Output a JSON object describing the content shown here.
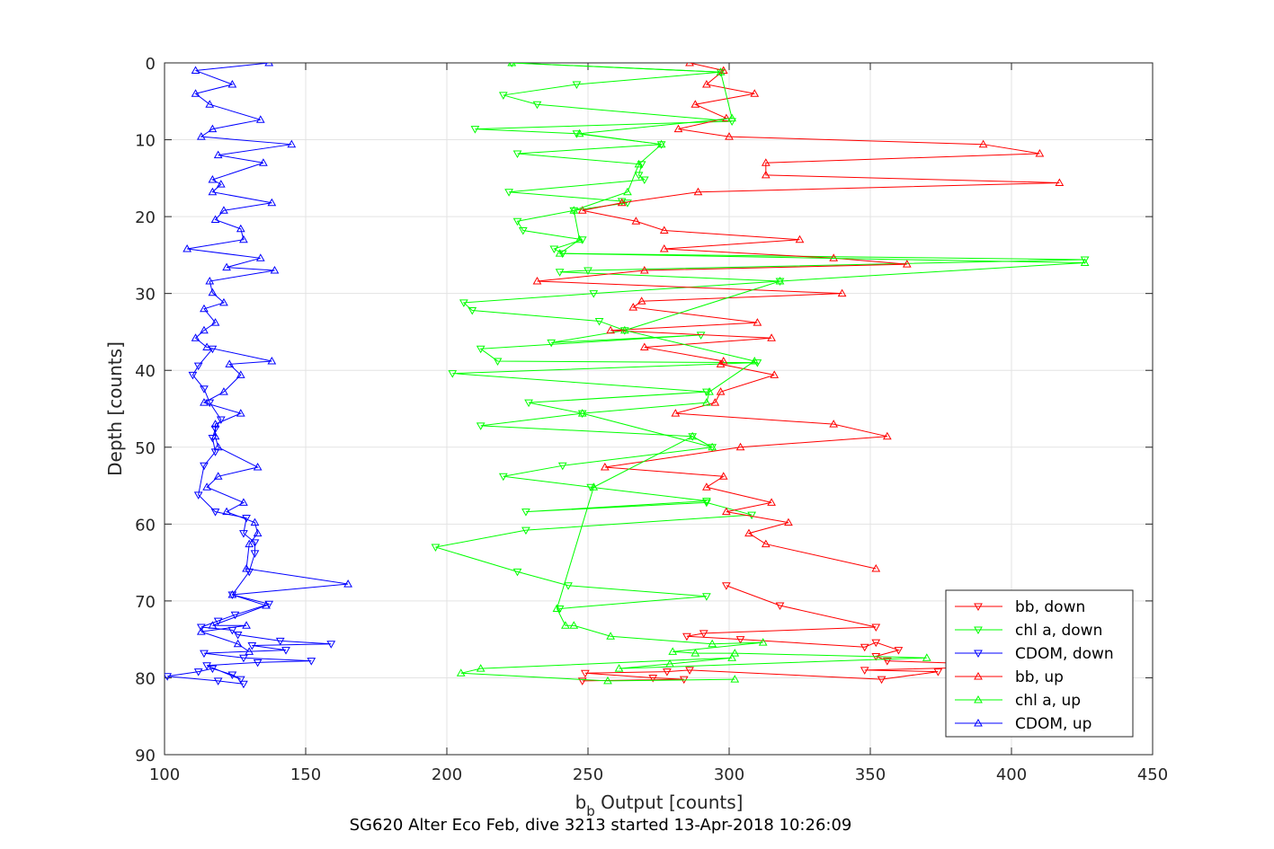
{
  "chart_data": {
    "type": "line",
    "title": "SG620 Alter Eco Feb, dive 3213 started 13-Apr-2018 10:26:09",
    "xlabel_main": "b",
    "xlabel_sub": "b",
    "xlabel_rest": " Output [counts]",
    "ylabel": "Depth [counts]",
    "xlim": [
      100,
      450
    ],
    "ylim": [
      0,
      90
    ],
    "y_reversed": true,
    "grid": true,
    "legend_position": "bottom-right",
    "xticks": [
      "100",
      "150",
      "200",
      "250",
      "300",
      "350",
      "400",
      "450"
    ],
    "yticks": [
      "0",
      "10",
      "20",
      "30",
      "40",
      "50",
      "60",
      "70",
      "80",
      "90"
    ],
    "series": [
      {
        "name": "bb, down",
        "color": "#ff0000",
        "marker": "down",
        "x": [
          299,
          318,
          352,
          291,
          285,
          304,
          348,
          352,
          360,
          352,
          356,
          389,
          392,
          348,
          374,
          354,
          286,
          278,
          249,
          273,
          284,
          248
        ],
        "y": [
          68,
          70.6,
          73.4,
          74.2,
          74.6,
          75,
          76,
          75.4,
          76.4,
          77.2,
          77.8,
          78.2,
          78.6,
          79,
          79.2,
          80.2,
          79,
          79.2,
          79.4,
          80,
          80.2,
          80.4
        ]
      },
      {
        "name": "chl a, down",
        "color": "#00ff00",
        "marker": "down",
        "x": [
          240,
          292,
          243,
          225,
          196,
          228,
          308,
          292,
          228,
          292,
          251,
          220,
          241,
          294,
          287,
          212,
          248,
          229,
          292,
          202,
          310,
          218,
          212,
          290,
          237,
          263,
          254,
          209,
          206,
          252,
          318,
          240,
          250,
          426,
          241,
          238,
          248,
          227,
          225,
          245,
          264,
          262,
          222,
          270,
          268,
          269,
          225,
          276,
          246,
          210,
          301,
          232,
          220,
          246,
          297,
          223
        ],
        "y": [
          71,
          69.4,
          68,
          66.2,
          63,
          60.8,
          58.8,
          57.2,
          58.4,
          57,
          55.2,
          53.8,
          52.4,
          50,
          48.6,
          47.2,
          45.6,
          44.2,
          42.8,
          40.4,
          39,
          38.8,
          37.2,
          35.4,
          36.4,
          34.8,
          33.6,
          32.2,
          31.2,
          30,
          28.4,
          27.2,
          27,
          25.6,
          24.8,
          24.2,
          23,
          21.8,
          20.6,
          19.2,
          18.2,
          18,
          16.8,
          15.2,
          14.6,
          13.2,
          11.8,
          10.6,
          9.2,
          8.6,
          7.6,
          5.4,
          4.2,
          2.8,
          1.2,
          0
        ]
      },
      {
        "name": "CDOM, down",
        "color": "#0000ff",
        "marker": "down",
        "x": [
          128,
          119,
          101,
          112,
          117,
          124,
          127,
          115,
          133,
          152,
          128,
          114,
          143,
          131,
          159,
          141,
          126,
          124,
          113,
          119,
          125,
          137,
          124,
          130,
          132,
          132,
          128,
          129,
          118,
          112,
          114,
          118,
          117,
          118,
          120,
          116,
          114,
          110,
          112,
          117
        ],
        "y": [
          80.8,
          80.4,
          79.8,
          79.2,
          78.8,
          79.6,
          80.2,
          78.4,
          78,
          77.8,
          77.4,
          76.8,
          76.4,
          75.8,
          75.6,
          75.2,
          74.4,
          73.8,
          73.4,
          72.6,
          71.8,
          70.4,
          69.2,
          66.2,
          63.8,
          62.4,
          61.2,
          59.2,
          58.4,
          56.2,
          52.4,
          50.6,
          48.8,
          47.6,
          46.4,
          44.2,
          42.4,
          40.6,
          39.4,
          37.2
        ]
      },
      {
        "name": "bb, up",
        "color": "#ff0000",
        "marker": "up",
        "x": [
          286,
          298,
          292,
          309,
          288,
          299,
          282,
          300,
          390,
          410,
          313,
          313,
          417,
          289,
          262,
          248,
          267,
          277,
          325,
          277,
          337,
          363,
          270,
          232,
          340,
          269,
          266,
          310,
          258,
          315,
          270,
          298,
          297,
          316,
          297,
          295,
          281,
          337,
          356,
          304,
          256,
          298,
          292,
          315,
          299,
          321,
          307,
          313,
          352
        ],
        "y": [
          0,
          1,
          2.8,
          4,
          5.4,
          7.2,
          8.6,
          9.6,
          10.6,
          11.8,
          13,
          14.6,
          15.6,
          16.8,
          18.2,
          19.2,
          20.6,
          21.8,
          23,
          24.2,
          25.4,
          26.2,
          27,
          28.4,
          30,
          31,
          31.8,
          33.8,
          34.8,
          35.8,
          37,
          38.8,
          39.2,
          40.6,
          42.8,
          44.2,
          45.6,
          47,
          48.6,
          50,
          52.6,
          53.8,
          55.2,
          57.2,
          58.4,
          59.8,
          61.2,
          62.6,
          65.8
        ]
      },
      {
        "name": "chl a, up",
        "color": "#00ff00",
        "marker": "up",
        "x": [
          223,
          297,
          301,
          247,
          276,
          268,
          264,
          245,
          247,
          240,
          426,
          318,
          263,
          309,
          293,
          292,
          248,
          294,
          287,
          252,
          239,
          242,
          245,
          258,
          294,
          312,
          280,
          288,
          302,
          370,
          261,
          279,
          301,
          212,
          205,
          257,
          302
        ],
        "y": [
          0,
          1.2,
          7.2,
          9.2,
          10.6,
          13.2,
          16.8,
          19.2,
          23,
          24.8,
          26,
          28.4,
          34.8,
          38.8,
          42.8,
          44.2,
          45.6,
          50,
          48.6,
          55.2,
          71,
          73.2,
          73.2,
          74.6,
          75.6,
          75.4,
          76.6,
          76.8,
          76.8,
          77.4,
          78.8,
          78.2,
          77.4,
          78.8,
          79.4,
          80.4,
          80.2
        ]
      },
      {
        "name": "CDOM, up",
        "color": "#0000ff",
        "marker": "up",
        "x": [
          137,
          111,
          124,
          111,
          116,
          134,
          117,
          113,
          145,
          119,
          135,
          117,
          120,
          117,
          138,
          121,
          118,
          127,
          128,
          108,
          134,
          122,
          139,
          116,
          117,
          121,
          114,
          118,
          114,
          111,
          115,
          138,
          123,
          127,
          121,
          114,
          127,
          118,
          118,
          119,
          133,
          119,
          115,
          128,
          122,
          132,
          133,
          130,
          129,
          165,
          124,
          136,
          117,
          129,
          113,
          126,
          130
        ],
        "y": [
          0,
          1,
          2.8,
          4,
          5.4,
          7.4,
          8.6,
          9.6,
          10.6,
          12,
          13,
          15.2,
          15.8,
          16.8,
          18.2,
          19.2,
          20.4,
          21.6,
          23,
          24.2,
          25.4,
          26.6,
          27,
          28.4,
          29.9,
          31.2,
          32,
          33.8,
          34.8,
          35.8,
          37,
          38.8,
          39.2,
          40.6,
          42.8,
          44.2,
          45.6,
          47,
          48.6,
          50,
          52.6,
          53.8,
          55.2,
          57.2,
          58.4,
          59.8,
          61.2,
          62.6,
          65.8,
          67.8,
          69.2,
          70.6,
          73.2,
          73.2,
          74,
          75.6,
          76.6
        ]
      }
    ]
  }
}
